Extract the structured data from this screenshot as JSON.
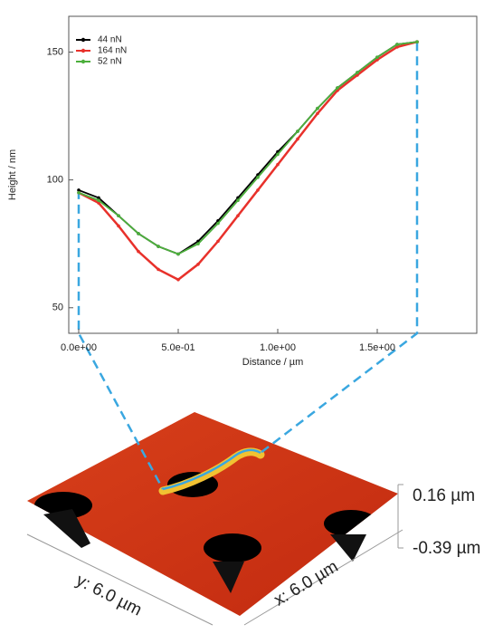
{
  "chart_data": {
    "type": "line",
    "xlabel": "Distance / µm",
    "ylabel": "Height / nm",
    "x": [
      0,
      0.1,
      0.2,
      0.3,
      0.4,
      0.5,
      0.6,
      0.7,
      0.8,
      0.9,
      1.0,
      1.1,
      1.2,
      1.3,
      1.4,
      1.5,
      1.6,
      1.7
    ],
    "series": [
      {
        "name": "44 nN",
        "color": "#000000",
        "values": [
          96,
          93,
          86,
          79,
          74,
          71,
          76,
          84,
          93,
          102,
          111,
          119,
          128,
          136,
          142,
          148,
          153,
          154
        ]
      },
      {
        "name": "164 nN",
        "color": "#e8312b",
        "values": [
          95,
          91,
          82,
          72,
          65,
          61,
          67,
          76,
          86,
          96,
          106,
          116,
          126,
          135,
          141,
          147,
          152,
          154
        ]
      },
      {
        "name": "52 nN",
        "color": "#4caf3c",
        "values": [
          95,
          92,
          86,
          79,
          74,
          71,
          75,
          83,
          92,
          101,
          110,
          119,
          128,
          136,
          142,
          148,
          153,
          154
        ]
      }
    ],
    "xlim": [
      -0.05,
      2.0
    ],
    "ylim": [
      40,
      164
    ],
    "xticks": [
      {
        "value": 0,
        "label": "0.0e+00"
      },
      {
        "value": 0.5,
        "label": "5.0e-01"
      },
      {
        "value": 1.0,
        "label": "1.0e+00"
      },
      {
        "value": 1.5,
        "label": "1.5e+00"
      }
    ],
    "yticks": [
      50,
      100,
      150
    ],
    "legend": "upper-left"
  },
  "image_labels": {
    "z_max": "0.16 µm",
    "z_min": "-0.39 µm",
    "y_size": "y: 6.0 µm",
    "x_size": "x: 6.0 µm"
  }
}
